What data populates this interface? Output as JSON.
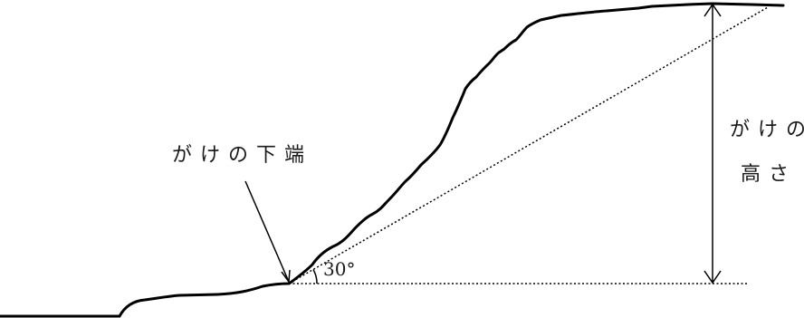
{
  "labels": {
    "cliff_bottom": "がけの下端",
    "cliff_height_line1": "がけの",
    "cliff_height_line2": "高さ",
    "angle": "30°"
  },
  "colors": {
    "line": "#000000",
    "text": "#1a1a1a"
  }
}
